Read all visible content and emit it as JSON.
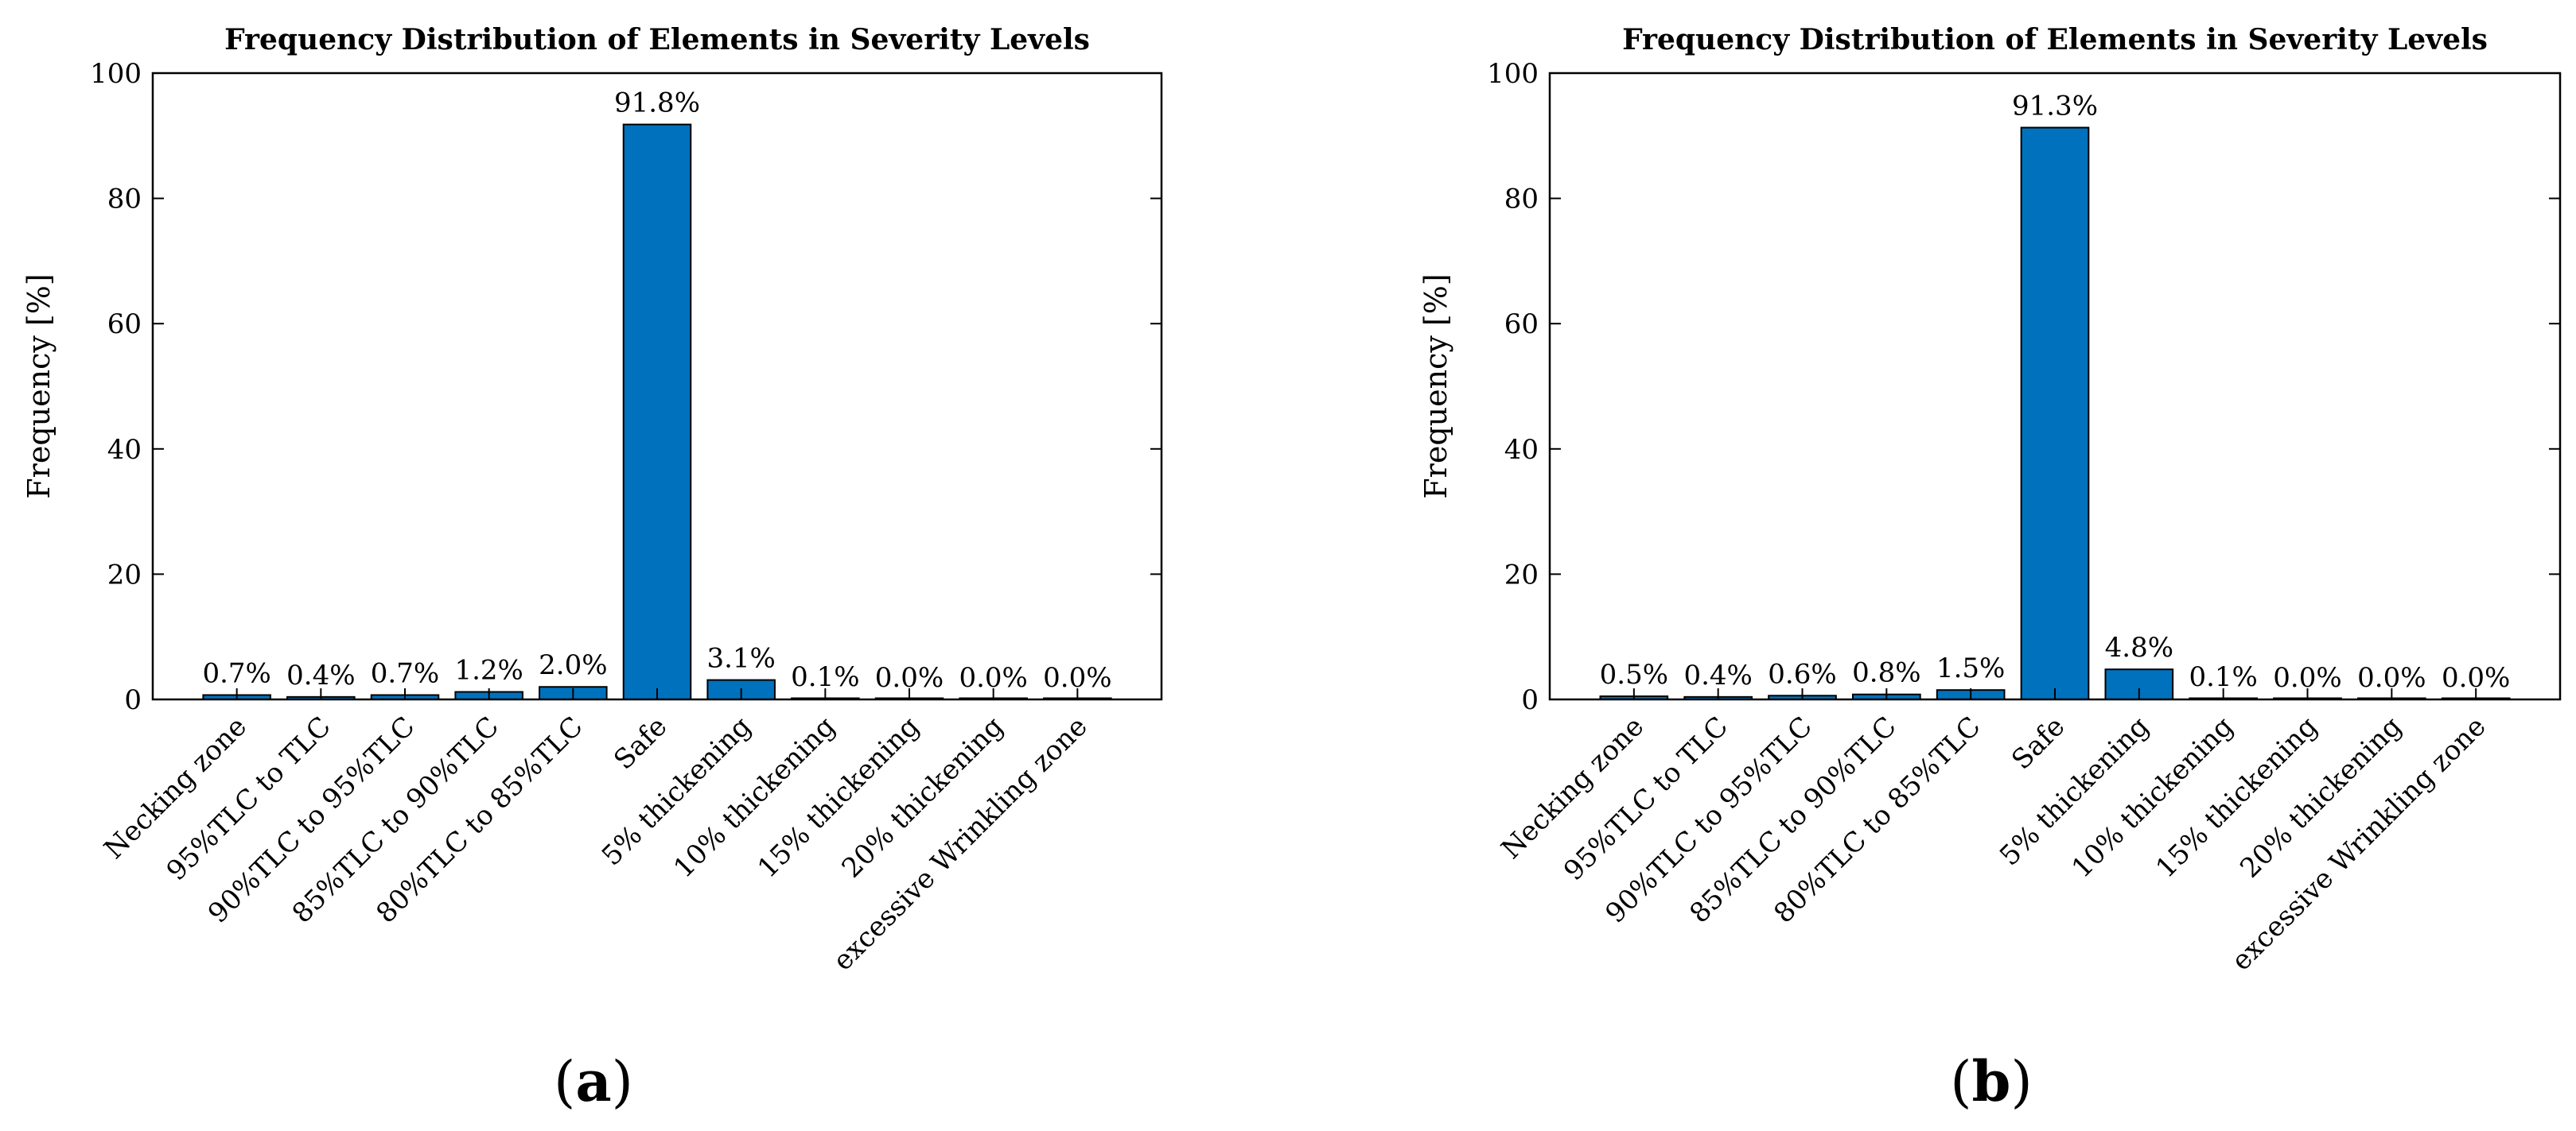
{
  "chart_data": [
    {
      "type": "bar",
      "title": "Frequency Distribution of Elements in Severity Levels",
      "xlabel": "",
      "ylabel": "Frequency [%]",
      "ylim": [
        0,
        100
      ],
      "yticks": [
        0,
        20,
        40,
        60,
        80,
        100
      ],
      "categories": [
        "Necking zone",
        "95%TLC to TLC",
        "90%TLC to 95%TLC",
        "85%TLC to 90%TLC",
        "80%TLC to 85%TLC",
        "Safe",
        "5% thickening",
        "10% thickening",
        "15% thickening",
        "20% thickening",
        "excessive Wrinkling zone"
      ],
      "values": [
        0.7,
        0.4,
        0.7,
        1.2,
        2.0,
        91.8,
        3.1,
        0.1,
        0.0,
        0.0,
        0.0
      ],
      "value_labels": [
        "0.7%",
        "0.4%",
        "0.7%",
        "1.2%",
        "2.0%",
        "91.8%",
        "3.1%",
        "0.1%",
        "0.0%",
        "0.0%",
        "0.0%"
      ],
      "bar_color": "#0072BD",
      "panel_label": "a"
    },
    {
      "type": "bar",
      "title": "Frequency Distribution of Elements in Severity Levels",
      "xlabel": "",
      "ylabel": "Frequency [%]",
      "ylim": [
        0,
        100
      ],
      "yticks": [
        0,
        20,
        40,
        60,
        80,
        100
      ],
      "categories": [
        "Necking zone",
        "95%TLC to TLC",
        "90%TLC to 95%TLC",
        "85%TLC to 90%TLC",
        "80%TLC to 85%TLC",
        "Safe",
        "5% thickening",
        "10% thickening",
        "15% thickening",
        "20% thickening",
        "excessive Wrinkling zone"
      ],
      "values": [
        0.5,
        0.4,
        0.6,
        0.8,
        1.5,
        91.3,
        4.8,
        0.1,
        0.0,
        0.0,
        0.0
      ],
      "value_labels": [
        "0.5%",
        "0.4%",
        "0.6%",
        "0.8%",
        "1.5%",
        "91.3%",
        "4.8%",
        "0.1%",
        "0.0%",
        "0.0%",
        "0.0%"
      ],
      "bar_color": "#0072BD",
      "panel_label": "b"
    }
  ]
}
